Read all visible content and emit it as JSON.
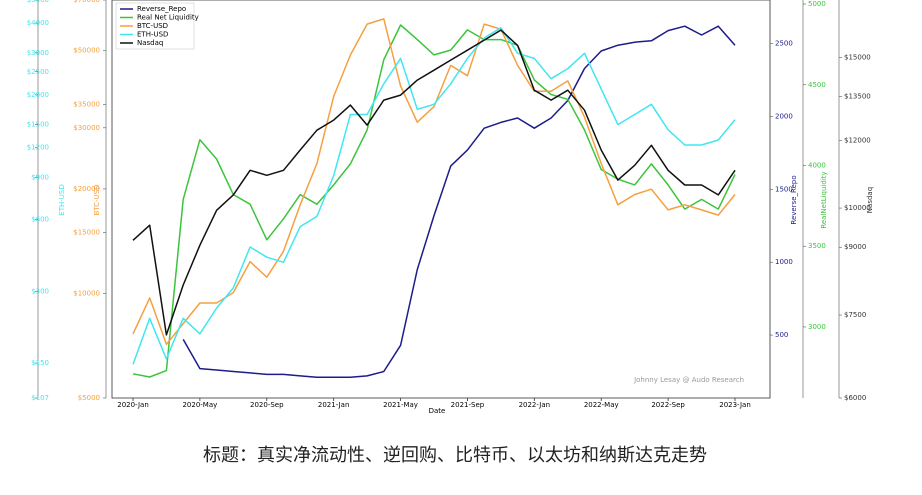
{
  "chart_data": {
    "type": "line",
    "xlabel": "Date",
    "watermark": "Johnny Lesay @ Audo Research",
    "caption": "标题：真实净流动性、逆回购、比特币、以太坊和纳斯达克走势",
    "legend": "upper left",
    "x": [
      "2020-Jan",
      "2020-Feb",
      "2020-Mar",
      "2020-Apr",
      "2020-May",
      "2020-Jun",
      "2020-Jul",
      "2020-Aug",
      "2020-Sep",
      "2020-Oct",
      "2020-Nov",
      "2020-Dec",
      "2021-Jan",
      "2021-Feb",
      "2021-Mar",
      "2021-Apr",
      "2021-May",
      "2021-Jun",
      "2021-Jul",
      "2021-Aug",
      "2021-Sep",
      "2021-Oct",
      "2021-Nov",
      "2021-Dec",
      "2022-Jan",
      "2022-Feb",
      "2022-Mar",
      "2022-Apr",
      "2022-May",
      "2022-Jun",
      "2022-Jul",
      "2022-Aug",
      "2022-Sep",
      "2022-Oct",
      "2022-Nov",
      "2022-Dec",
      "2023-Jan"
    ],
    "xticks": [
      "2020-Jan",
      "2020-May",
      "2020-Sep",
      "2021-Jan",
      "2021-May",
      "2021-Sep",
      "2022-Jan",
      "2022-May",
      "2022-Sep",
      "2023-Jan"
    ],
    "series": [
      {
        "name": "Reverse_Repo",
        "axis_label": "Reverse_Repo",
        "color": "#1c1c8a",
        "log": false,
        "lim": [
          68,
          2800
        ],
        "ticks": [
          500,
          1000,
          1500,
          2000,
          2500
        ],
        "values": [
          null,
          null,
          null,
          470,
          270,
          260,
          250,
          240,
          230,
          230,
          220,
          210,
          210,
          210,
          220,
          250,
          430,
          950,
          1320,
          1660,
          1770,
          1920,
          1960,
          1990,
          1920,
          1990,
          2110,
          2330,
          2450,
          2490,
          2510,
          2520,
          2590,
          2620,
          2560,
          2620,
          2490
        ]
      },
      {
        "name": "Real Net Liquidity",
        "axis_label": "RealNetLiquidity",
        "color": "#3cc43c",
        "log": false,
        "lim": [
          2560,
          5025
        ],
        "ticks": [
          3000,
          3500,
          4000,
          4500,
          5000
        ],
        "values": [
          2710,
          2690,
          2730,
          3790,
          4160,
          4040,
          3820,
          3760,
          3540,
          3670,
          3820,
          3760,
          3880,
          4010,
          4220,
          4655,
          4870,
          4780,
          4685,
          4715,
          4840,
          4780,
          4780,
          4745,
          4530,
          4440,
          4410,
          4220,
          3975,
          3915,
          3880,
          4010,
          3880,
          3730,
          3790,
          3730,
          3945
        ]
      },
      {
        "name": "BTC-USD",
        "axis_label": "BTC-USD",
        "color": "#f5a040",
        "log": true,
        "lim": [
          5000,
          70000
        ],
        "ticks": [
          {
            "value": 5000,
            "label": "$5000"
          },
          {
            "value": 10000,
            "label": "$10000"
          },
          {
            "value": 15000,
            "label": "$15000"
          },
          {
            "value": 20000,
            "label": "$20000"
          },
          {
            "value": 30000,
            "label": "$30000"
          },
          {
            "value": 35000,
            "label": "$35000"
          },
          {
            "value": 50000,
            "label": "$50000"
          },
          {
            "value": 70000,
            "label": "$70000"
          }
        ],
        "values": [
          7650,
          9710,
          7140,
          8190,
          9390,
          9390,
          10060,
          12350,
          11140,
          13230,
          18000,
          23670,
          36940,
          48600,
          59660,
          61760,
          39550,
          31130,
          34520,
          45360,
          42370,
          59660,
          57670,
          45360,
          38220,
          38220,
          40940,
          32210,
          23670,
          18000,
          19270,
          19960,
          17400,
          18000,
          17400,
          16810,
          19270
        ]
      },
      {
        "name": "ETH-USD",
        "axis_label": "ETH-USD",
        "color": "#40e6f0",
        "log": true,
        "lim": [
          107,
          5000
        ],
        "ticks": [
          {
            "value": 107,
            "label": "$107"
          },
          {
            "value": 150,
            "label": "$150"
          },
          {
            "value": 300,
            "label": "$300"
          },
          {
            "value": 600,
            "label": "$600"
          },
          {
            "value": 900,
            "label": "$900"
          },
          {
            "value": 1200,
            "label": "$1200"
          },
          {
            "value": 1500,
            "label": "$1500"
          },
          {
            "value": 2000,
            "label": "$2000"
          },
          {
            "value": 2500,
            "label": "$2500"
          },
          {
            "value": 3000,
            "label": "$3000"
          },
          {
            "value": 4000,
            "label": "$4000"
          },
          {
            "value": 5000,
            "label": "$5000"
          }
        ],
        "values": [
          148,
          231,
          156,
          231,
          199,
          255,
          310,
          460,
          417,
          397,
          560,
          618,
          917,
          1655,
          1655,
          2226,
          2845,
          1739,
          1826,
          2226,
          2845,
          3465,
          3822,
          2987,
          2845,
          2338,
          2578,
          2987,
          2118,
          1500,
          1655,
          1826,
          1427,
          1232,
          1232,
          1293,
          1574
        ]
      },
      {
        "name": "Nasdaq",
        "axis_label": "Nasdaq",
        "color": "#111111",
        "log": true,
        "lim": [
          6000,
          17500
        ],
        "ticks": [
          {
            "value": 6000,
            "label": "$6000"
          },
          {
            "value": 7500,
            "label": "$7500"
          },
          {
            "value": 9000,
            "label": "$9000"
          },
          {
            "value": 10000,
            "label": "$10000"
          },
          {
            "value": 12000,
            "label": "$12000"
          },
          {
            "value": 13500,
            "label": "$13500"
          },
          {
            "value": 15000,
            "label": "$15000"
          }
        ],
        "values": [
          9170,
          9550,
          7110,
          8130,
          9050,
          9940,
          10360,
          11070,
          10920,
          11070,
          11690,
          12330,
          12670,
          13190,
          12500,
          13370,
          13550,
          14110,
          14490,
          14890,
          15290,
          15710,
          16140,
          15490,
          13730,
          13370,
          13730,
          13010,
          11690,
          10780,
          11220,
          11840,
          11070,
          10640,
          10640,
          10360,
          11070
        ]
      }
    ]
  }
}
